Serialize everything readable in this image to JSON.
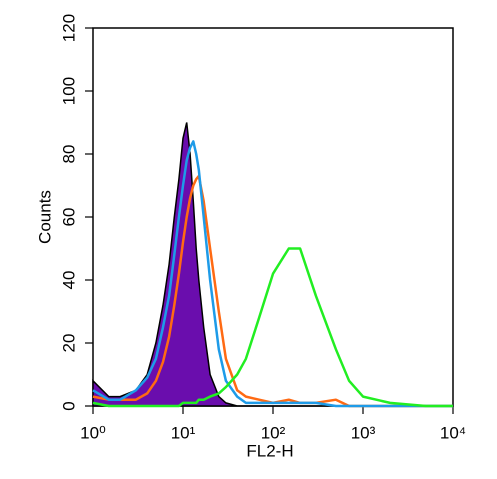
{
  "chart_data": {
    "type": "histogram-overlay",
    "xlabel": "FL2-H",
    "ylabel": "Counts",
    "xscale": "log",
    "xlim": [
      1,
      10000
    ],
    "ylim": [
      0,
      120
    ],
    "xticks": [
      {
        "value": 1,
        "label": "10⁰"
      },
      {
        "value": 10,
        "label": "10¹"
      },
      {
        "value": 100,
        "label": "10²"
      },
      {
        "value": 1000,
        "label": "10³"
      },
      {
        "value": 10000,
        "label": "10⁴"
      }
    ],
    "yticks": [
      0,
      20,
      40,
      60,
      80,
      100,
      120
    ],
    "x": [
      1,
      1.5,
      2,
      3,
      4,
      5,
      6,
      7,
      8,
      9,
      10,
      11,
      12,
      13,
      14,
      15,
      17,
      20,
      25,
      30,
      40,
      50,
      70,
      100,
      150,
      200,
      300,
      500,
      700,
      1000,
      2000,
      5000,
      10000
    ],
    "series": [
      {
        "color": "#6a0dad",
        "filled": true,
        "values": [
          8,
          3,
          3,
          5,
          10,
          20,
          32,
          45,
          60,
          72,
          85,
          90,
          80,
          65,
          50,
          40,
          25,
          10,
          3,
          1,
          0,
          0,
          0,
          0,
          0,
          0,
          0,
          0,
          0,
          0,
          0,
          0,
          0
        ]
      },
      {
        "color": "#ff6a13",
        "filled": false,
        "values": [
          3,
          2,
          2,
          2,
          4,
          8,
          14,
          22,
          32,
          42,
          52,
          60,
          66,
          70,
          72,
          73,
          65,
          50,
          30,
          15,
          5,
          3,
          2,
          1,
          2,
          1,
          1,
          2,
          0,
          0,
          0,
          0,
          0
        ]
      },
      {
        "color": "#1e9be8",
        "filled": false,
        "values": [
          5,
          2,
          2,
          5,
          9,
          15,
          25,
          35,
          48,
          60,
          70,
          78,
          82,
          84,
          80,
          75,
          60,
          40,
          18,
          8,
          3,
          1,
          1,
          1,
          1,
          1,
          1,
          0,
          0,
          0,
          0,
          0,
          0
        ]
      },
      {
        "color": "#22ee22",
        "filled": false,
        "values": [
          1,
          0,
          0,
          0,
          0,
          0,
          0,
          0,
          0,
          0,
          1,
          1,
          1,
          1,
          1,
          2,
          2,
          3,
          4,
          6,
          10,
          15,
          28,
          42,
          50,
          50,
          35,
          18,
          8,
          3,
          1,
          0,
          0
        ]
      }
    ]
  }
}
